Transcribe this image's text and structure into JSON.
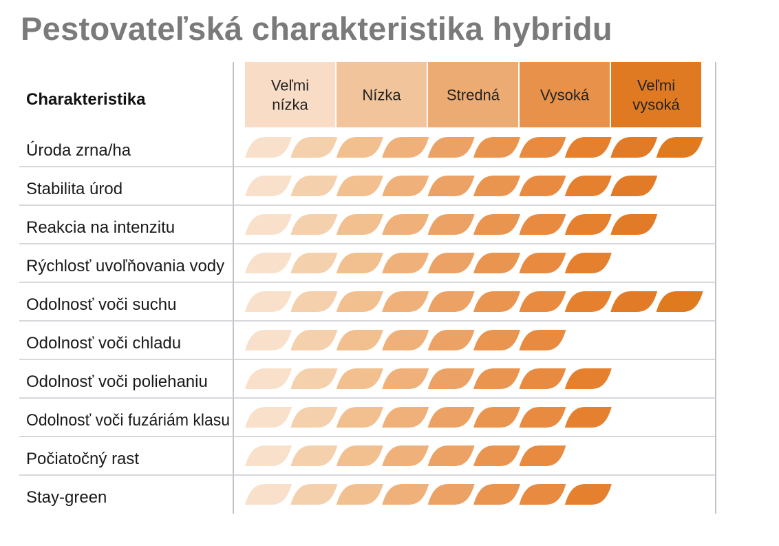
{
  "chart_data": {
    "type": "table",
    "title": "Pestovateľská charakteristika hybridu",
    "row_header": "Charakteristika",
    "levels": [
      "Veľmi nízka",
      "Nízka",
      "Stredná",
      "Vysoká",
      "Veľmi vysoká"
    ],
    "level_colors": [
      "#f8dcc5",
      "#f2c49c",
      "#ecab73",
      "#e7914a",
      "#e07a22"
    ],
    "leaf_colors": [
      "#f9e0cb",
      "#f5d0ad",
      "#f2bf8f",
      "#f0b07a",
      "#eda265",
      "#e99550",
      "#e88a3f",
      "#e4802e",
      "#e27b27",
      "#df7a1f"
    ],
    "max_value": 10,
    "rows": [
      {
        "label": "Úroda zrna/ha",
        "value": 10
      },
      {
        "label": "Stabilita úrod",
        "value": 9
      },
      {
        "label": "Reakcia na intenzitu",
        "value": 9
      },
      {
        "label": "Rýchlosť uvoľňovania vody",
        "value": 8
      },
      {
        "label": "Odolnosť voči suchu",
        "value": 10
      },
      {
        "label": "Odolnosť voči chladu",
        "value": 7
      },
      {
        "label": "Odolnosť voči poliehaniu",
        "value": 8
      },
      {
        "label": "Odolnosť voči fuzáriám klasu",
        "value": 8
      },
      {
        "label": "Počiatočný rast",
        "value": 7
      },
      {
        "label": "Stay-green",
        "value": 8
      }
    ]
  }
}
